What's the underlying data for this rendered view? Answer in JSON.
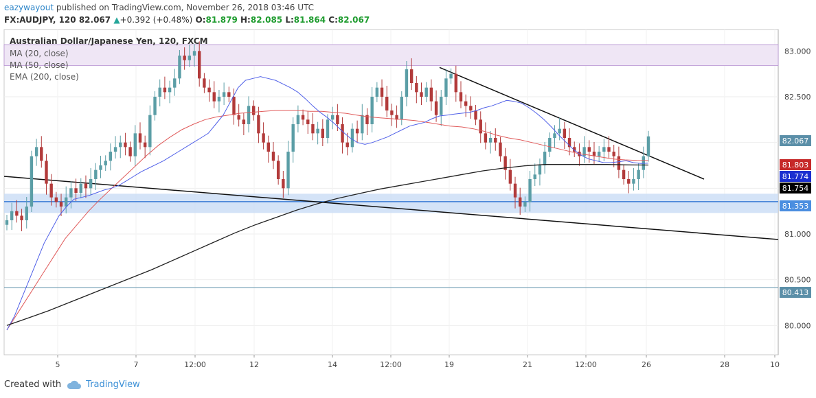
{
  "header": {
    "author": "eazywayout",
    "published": "published on TradingView.com, November 26, 2018 03:46 UTC",
    "symbol": "FX:AUDJPY, 120",
    "last": "82.067",
    "arrow": "▲",
    "change": "+0.392 (+0.48%)",
    "o_label": "O:",
    "o_val": "81.879",
    "h_label": "H:",
    "h_val": "82.085",
    "l_label": "L:",
    "l_val": "81.864",
    "c_label": "C:",
    "c_val": "82.067"
  },
  "footer": {
    "created": "Created with",
    "brand": "TradingView"
  },
  "colors": {
    "up": "#5b9ea6",
    "down": "#b23a3a",
    "ma20": "#5060e8",
    "ma50": "#e05a5a",
    "ema200": "#222222",
    "zone": "#c9dcf5",
    "zone_line": "#3a7bd5",
    "resistance_zone": "#efe6f5"
  },
  "chart_data": {
    "type": "candlestick",
    "title": "Australian Dollar/Japanese Yen, 120, FXCM",
    "legend": [
      "MA (20, close)",
      "MA (50, close)",
      "EMA (200, close)"
    ],
    "ylim": [
      79.5,
      83.15
    ],
    "yticks": [
      "83.000",
      "82.500",
      "82.000",
      "81.500",
      "81.000",
      "80.500",
      "80.000"
    ],
    "xticks": [
      "5",
      "7",
      "12:00",
      "12",
      "14",
      "12:00",
      "19",
      "21",
      "12:00",
      "26",
      "28",
      "10"
    ],
    "price_tags": [
      {
        "label": "82.067",
        "value": 82.067,
        "color": "#5b8fa8"
      },
      {
        "label": "81.803",
        "value": 81.803,
        "color": "#c62828"
      },
      {
        "label": "81.774",
        "value": 81.774,
        "color": "#1a2fd0"
      },
      {
        "label": "81.754",
        "value": 81.754,
        "color": "#000000"
      },
      {
        "label": "81.353",
        "value": 81.353,
        "color": "#4a8ee0"
      },
      {
        "label": "80.413",
        "value": 80.413,
        "color": "#5b8fa8"
      }
    ],
    "levels": {
      "support_zone": [
        81.23,
        81.44
      ],
      "support_line": 81.353,
      "lower_line": 80.413,
      "resistance_zone": [
        82.84,
        83.07
      ]
    },
    "closes": [
      81.15,
      81.25,
      81.2,
      81.15,
      81.3,
      81.85,
      81.95,
      81.8,
      81.55,
      81.4,
      81.35,
      81.3,
      81.4,
      81.5,
      81.45,
      81.55,
      81.5,
      81.6,
      81.7,
      81.75,
      81.8,
      81.9,
      81.95,
      82.0,
      81.95,
      81.85,
      82.1,
      82.0,
      81.95,
      82.3,
      82.5,
      82.6,
      82.55,
      82.6,
      82.7,
      82.95,
      82.9,
      82.95,
      83.0,
      82.7,
      82.6,
      82.55,
      82.45,
      82.5,
      82.55,
      82.5,
      82.3,
      82.25,
      82.2,
      82.4,
      82.3,
      82.1,
      82.0,
      81.9,
      81.8,
      81.6,
      81.5,
      81.9,
      82.2,
      82.3,
      82.25,
      82.2,
      82.1,
      82.15,
      82.05,
      82.25,
      82.3,
      82.2,
      82.0,
      81.95,
      82.15,
      82.1,
      82.3,
      82.2,
      82.5,
      82.6,
      82.5,
      82.35,
      82.3,
      82.25,
      82.5,
      82.8,
      82.65,
      82.55,
      82.5,
      82.6,
      82.45,
      82.3,
      82.5,
      82.7,
      82.75,
      82.55,
      82.45,
      82.4,
      82.35,
      82.25,
      82.1,
      82.0,
      82.05,
      82.0,
      81.85,
      81.7,
      81.55,
      81.4,
      81.3,
      81.35,
      81.6,
      81.65,
      81.75,
      81.9,
      82.05,
      82.1,
      82.15,
      82.05,
      81.95,
      81.9,
      81.85,
      81.95,
      81.9,
      81.85,
      81.9,
      81.95,
      81.9,
      81.85,
      81.7,
      81.6,
      81.55,
      81.6,
      81.7,
      81.85,
      82.067
    ],
    "ma20": [
      79.95,
      80.1,
      80.3,
      80.5,
      80.7,
      80.9,
      81.05,
      81.2,
      81.3,
      81.38,
      81.4,
      81.42,
      81.45,
      81.48,
      81.5,
      81.53,
      81.58,
      81.63,
      81.68,
      81.72,
      81.76,
      81.8,
      81.85,
      81.9,
      81.95,
      82.0,
      82.05,
      82.1,
      82.2,
      82.3,
      82.45,
      82.6,
      82.68,
      82.7,
      82.72,
      82.7,
      82.68,
      82.64,
      82.6,
      82.55,
      82.48,
      82.4,
      82.33,
      82.27,
      82.2,
      82.12,
      82.05,
      82.0,
      81.98,
      82.0,
      82.03,
      82.06,
      82.1,
      82.14,
      82.18,
      82.2,
      82.22,
      82.26,
      82.29,
      82.3,
      82.31,
      82.32,
      82.33,
      82.35,
      82.38,
      82.4,
      82.43,
      82.46,
      82.45,
      82.43,
      82.38,
      82.32,
      82.25,
      82.17,
      82.08,
      82.0,
      81.92,
      81.86,
      81.82,
      81.8,
      81.78,
      81.78,
      81.79,
      81.8,
      81.78,
      81.77,
      81.775
    ],
    "ma50": [
      79.95,
      80.15,
      80.35,
      80.55,
      80.75,
      80.95,
      81.1,
      81.25,
      81.38,
      81.5,
      81.62,
      81.74,
      81.86,
      81.97,
      82.06,
      82.14,
      82.2,
      82.25,
      82.28,
      82.3,
      82.32,
      82.33,
      82.34,
      82.35,
      82.35,
      82.35,
      82.34,
      82.34,
      82.33,
      82.32,
      82.3,
      82.28,
      82.27,
      82.26,
      82.25,
      82.24,
      82.22,
      82.2,
      82.18,
      82.17,
      82.15,
      82.12,
      82.08,
      82.05,
      82.03,
      82.0,
      81.97,
      81.94,
      81.91,
      81.88,
      81.86,
      81.84,
      81.82,
      81.81,
      81.805,
      81.803
    ],
    "ema200": [
      80.0,
      80.08,
      80.16,
      80.25,
      80.34,
      80.43,
      80.52,
      80.61,
      80.71,
      80.81,
      80.91,
      81.01,
      81.1,
      81.18,
      81.26,
      81.33,
      81.39,
      81.44,
      81.49,
      81.53,
      81.57,
      81.61,
      81.65,
      81.69,
      81.72,
      81.745,
      81.76,
      81.76,
      81.76,
      81.76,
      81.755,
      81.754
    ]
  }
}
